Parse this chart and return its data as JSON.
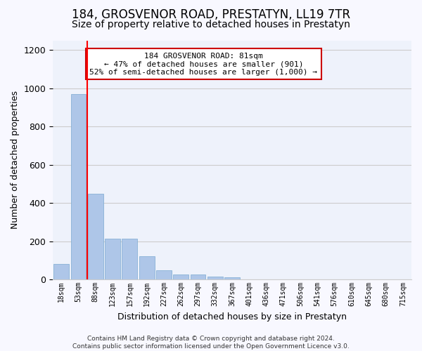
{
  "title": "184, GROSVENOR ROAD, PRESTATYN, LL19 7TR",
  "subtitle": "Size of property relative to detached houses in Prestatyn",
  "xlabel": "Distribution of detached houses by size in Prestatyn",
  "ylabel": "Number of detached properties",
  "footer": "Contains HM Land Registry data © Crown copyright and database right 2024.\nContains public sector information licensed under the Open Government Licence v3.0.",
  "bar_values": [
    80,
    970,
    450,
    215,
    215,
    120,
    50,
    25,
    25,
    15,
    10,
    0,
    0,
    0,
    0,
    0,
    0,
    0,
    0,
    0
  ],
  "bar_labels": [
    "18sqm",
    "53sqm",
    "88sqm",
    "123sqm",
    "157sqm",
    "192sqm",
    "227sqm",
    "262sqm",
    "297sqm",
    "332sqm",
    "367sqm",
    "401sqm",
    "436sqm",
    "471sqm",
    "506sqm",
    "541sqm",
    "576sqm",
    "610sqm",
    "645sqm",
    "680sqm",
    "715sqm"
  ],
  "bar_color": "#aec6e8",
  "bar_edge_color": "#7aaad0",
  "ylim": [
    0,
    1250
  ],
  "yticks": [
    0,
    200,
    400,
    600,
    800,
    1000,
    1200
  ],
  "red_line_x": 1.5,
  "annotation_text": "184 GROSVENOR ROAD: 81sqm\n← 47% of detached houses are smaller (901)\n52% of semi-detached houses are larger (1,000) →",
  "annotation_box_color": "#ffffff",
  "annotation_box_edge": "#cc0000",
  "grid_color": "#cccccc",
  "background_color": "#eef2fb",
  "fig_background": "#f8f8ff",
  "title_fontsize": 12,
  "subtitle_fontsize": 10
}
